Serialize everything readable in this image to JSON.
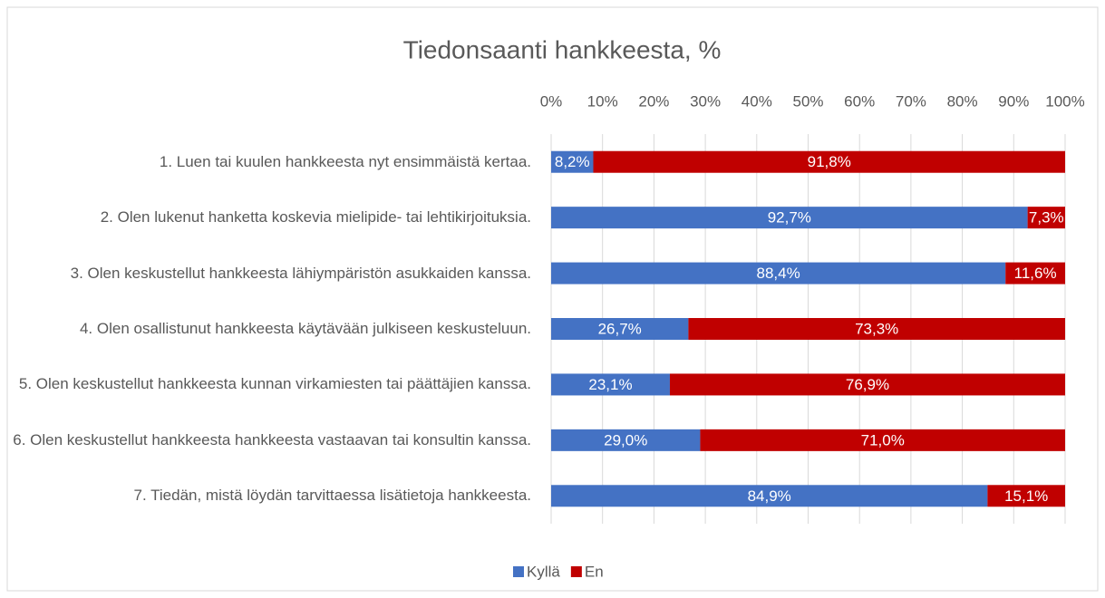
{
  "chart_data": {
    "type": "stacked_bar_horizontal",
    "title": "Tiedonsaanti hankkeesta, %",
    "categories": [
      "1. Luen tai kuulen hankkeesta nyt ensimmäistä kertaa.",
      "2. Olen lukenut hanketta koskevia mielipide- tai lehtikirjoituksia.",
      "3. Olen keskustellut hankkeesta lähiympäristön asukkaiden kanssa.",
      "4. Olen osallistunut hankkeesta käytävään julkiseen keskusteluun.",
      "5. Olen keskustellut hankkeesta kunnan virkamiesten tai päättäjien kanssa.",
      "6. Olen keskustellut hankkeesta hankkeesta vastaavan tai konsultin kanssa.",
      "7. Tiedän, mistä löydän tarvittaessa lisätietoja hankkeesta."
    ],
    "series": [
      {
        "name": "Kyllä",
        "color": "#4472c4",
        "values": [
          8.2,
          92.7,
          88.4,
          26.7,
          23.1,
          29.0,
          84.9
        ],
        "value_labels": [
          "8,2%",
          "92,7%",
          "88,4%",
          "26,7%",
          "23,1%",
          "29,0%",
          "84,9%"
        ]
      },
      {
        "name": "En",
        "color": "#c00000",
        "values": [
          91.8,
          7.3,
          11.6,
          73.3,
          76.9,
          71.0,
          15.1
        ],
        "value_labels": [
          "91,8%",
          "7,3%",
          "11,6%",
          "73,3%",
          "76,9%",
          "71,0%",
          "15,1%"
        ]
      }
    ],
    "xlim": [
      0,
      100
    ],
    "xticks": [
      {
        "value": 0,
        "label": "0%"
      },
      {
        "value": 10,
        "label": "10%"
      },
      {
        "value": 20,
        "label": "20%"
      },
      {
        "value": 30,
        "label": "30%"
      },
      {
        "value": 40,
        "label": "40%"
      },
      {
        "value": 50,
        "label": "50%"
      },
      {
        "value": 60,
        "label": "60%"
      },
      {
        "value": 70,
        "label": "70%"
      },
      {
        "value": 80,
        "label": "80%"
      },
      {
        "value": 90,
        "label": "90%"
      },
      {
        "value": 100,
        "label": "100%"
      }
    ],
    "grid": true,
    "legend": "bottom"
  }
}
